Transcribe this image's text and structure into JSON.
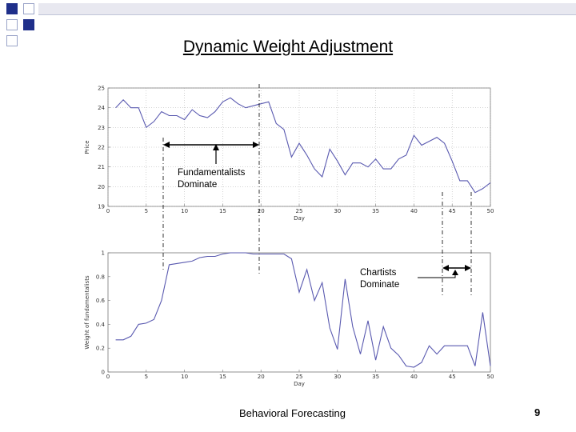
{
  "slide": {
    "title": "Dynamic Weight Adjustment",
    "footer": "Behavioral Forecasting",
    "page_number": "9"
  },
  "chart_data": [
    {
      "type": "line",
      "xlabel": "Day",
      "ylabel": "Price",
      "xlim": [
        0,
        50
      ],
      "ylim": [
        19,
        25
      ],
      "xticks": [
        0,
        5,
        10,
        15,
        20,
        25,
        30,
        35,
        40,
        45,
        50
      ],
      "yticks": [
        19,
        20,
        21,
        22,
        23,
        24,
        25
      ],
      "grid": true,
      "color": "#5a5ab0",
      "x": [
        1,
        2,
        3,
        4,
        5,
        6,
        7,
        8,
        9,
        10,
        11,
        12,
        13,
        14,
        15,
        16,
        17,
        18,
        19,
        20,
        21,
        22,
        23,
        24,
        25,
        26,
        27,
        28,
        29,
        30,
        31,
        32,
        33,
        34,
        35,
        36,
        37,
        38,
        39,
        40,
        41,
        42,
        43,
        44,
        45,
        46,
        47,
        48,
        49,
        50
      ],
      "y": [
        24.0,
        24.4,
        24.0,
        24.0,
        23.0,
        23.3,
        23.8,
        23.6,
        23.6,
        23.4,
        23.9,
        23.6,
        23.5,
        23.8,
        24.3,
        24.5,
        24.2,
        24.0,
        24.1,
        24.2,
        24.3,
        23.2,
        22.9,
        21.5,
        22.2,
        21.6,
        20.9,
        20.5,
        21.9,
        21.3,
        20.6,
        21.2,
        21.2,
        21.0,
        21.4,
        20.9,
        20.9,
        21.4,
        21.6,
        22.6,
        22.1,
        22.3,
        22.5,
        22.2,
        21.3,
        20.3,
        20.3,
        19.7,
        19.9,
        20.2
      ],
      "annotation": [
        "Fundamentalists",
        "Dominate"
      ]
    },
    {
      "type": "line",
      "xlabel": "Day",
      "ylabel": "Weight of fundamentalists",
      "xlim": [
        0,
        50
      ],
      "ylim": [
        0,
        1
      ],
      "xticks": [
        0,
        5,
        10,
        15,
        20,
        25,
        30,
        35,
        40,
        45,
        50
      ],
      "yticks": [
        0,
        0.2,
        0.4,
        0.6,
        0.8,
        1
      ],
      "grid": false,
      "color": "#5a5ab0",
      "x": [
        1,
        2,
        3,
        4,
        5,
        6,
        7,
        8,
        9,
        10,
        11,
        12,
        13,
        14,
        15,
        16,
        17,
        18,
        19,
        20,
        21,
        22,
        23,
        24,
        25,
        26,
        27,
        28,
        29,
        30,
        31,
        32,
        33,
        34,
        35,
        36,
        37,
        38,
        39,
        40,
        41,
        42,
        43,
        44,
        45,
        46,
        47,
        48,
        49,
        50
      ],
      "y": [
        0.27,
        0.27,
        0.3,
        0.4,
        0.41,
        0.44,
        0.6,
        0.9,
        0.91,
        0.92,
        0.93,
        0.96,
        0.97,
        0.97,
        0.99,
        1.0,
        1.0,
        1.0,
        0.99,
        0.99,
        0.99,
        0.99,
        0.99,
        0.95,
        0.67,
        0.86,
        0.6,
        0.75,
        0.37,
        0.19,
        0.78,
        0.38,
        0.15,
        0.43,
        0.1,
        0.38,
        0.2,
        0.14,
        0.05,
        0.04,
        0.08,
        0.22,
        0.15,
        0.22,
        0.22,
        0.22,
        0.22,
        0.05,
        0.5,
        0.05
      ],
      "annotation": [
        "Chartists",
        "Dominate"
      ]
    }
  ]
}
